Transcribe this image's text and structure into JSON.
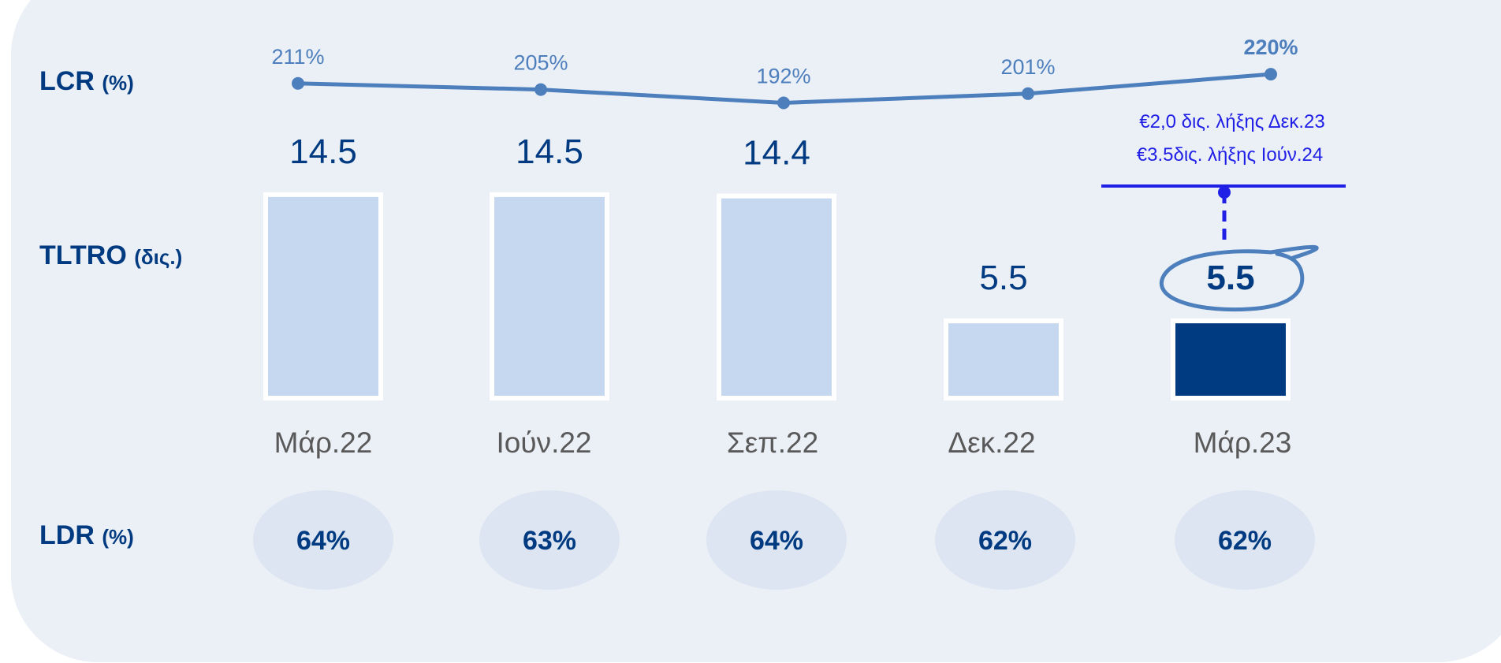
{
  "labels": {
    "lcr_main": "LCR",
    "lcr_unit": "(%)",
    "tltro_main": "TLTRO",
    "tltro_unit": "(δις.)",
    "ldr_main": "LDR",
    "ldr_unit": "(%)"
  },
  "note": {
    "line1": "€2,0 δις. λήξης Δεκ.23",
    "line2": "€3.5δις. λήξης Ιούν.24"
  },
  "colors": {
    "bar_light": "#c6d8ef",
    "bar_highlight": "#003a80",
    "line": "#4d7fbd",
    "panel": "#ebeff6",
    "ldr_ellipse": "#dce5f1",
    "note": "#1f1fe6"
  },
  "chart_data": {
    "type": "bar",
    "categories": [
      "Μάρ.22",
      "Ιούν.22",
      "Σεπ.22",
      "Δεκ.22",
      "Μάρ.23"
    ],
    "tltro": {
      "values": [
        14.5,
        14.5,
        14.4,
        5.5,
        5.5
      ],
      "labels": [
        "14.5",
        "14.5",
        "14.4",
        "5.5",
        "5.5"
      ],
      "highlight_index": 4
    },
    "lcr": {
      "values": [
        211,
        205,
        192,
        201,
        220
      ],
      "labels": [
        "211%",
        "205%",
        "192%",
        "201%",
        "220%"
      ]
    },
    "ldr": {
      "values": [
        64,
        63,
        64,
        62,
        62
      ],
      "labels": [
        "64%",
        "63%",
        "64%",
        "62%",
        "62%"
      ]
    }
  }
}
